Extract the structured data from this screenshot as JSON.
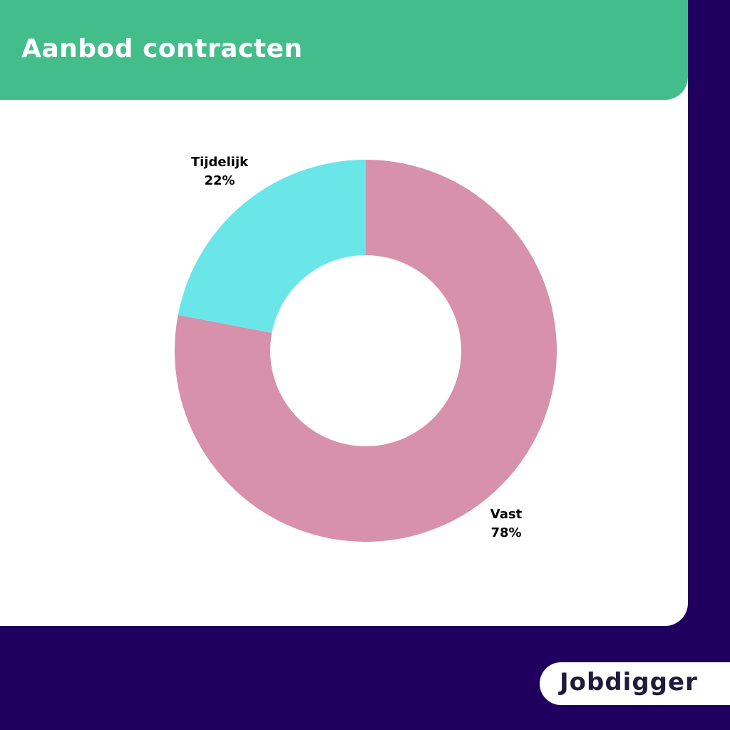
{
  "title": "Aanbod contracten",
  "logo": "Jobdigger",
  "colors": {
    "background": "#1f005e",
    "header": "#43be8b",
    "card": "#ffffff"
  },
  "chart_data": {
    "type": "pie",
    "donut": true,
    "title": "Aanbod contracten",
    "slices": [
      {
        "label": "Vast",
        "value": 78,
        "value_label": "78%",
        "color": "#d791aa"
      },
      {
        "label": "Tijdelijk",
        "value": 22,
        "value_label": "22%",
        "color": "#6ae6e9"
      }
    ],
    "start_angle_deg": 0,
    "direction": "clockwise"
  }
}
